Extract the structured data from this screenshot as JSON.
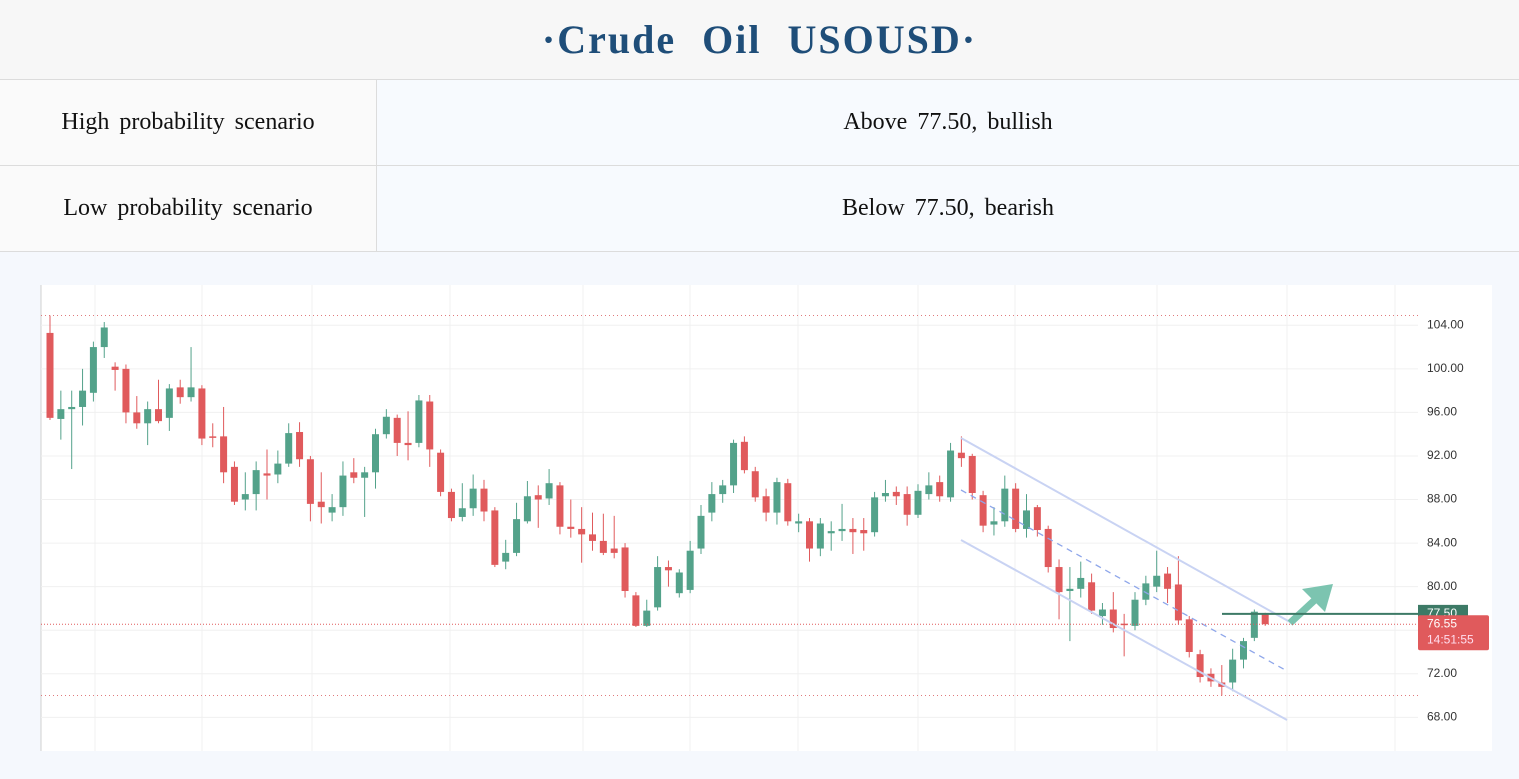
{
  "header": {
    "title": "·Crude Oil USOUSD·"
  },
  "table": {
    "rows": [
      [
        "High probability scenario",
        "Above 77.50, bullish"
      ],
      [
        "Low probability scenario",
        "Below 77.50, bearish"
      ]
    ]
  },
  "chart_data": {
    "type": "candlestick",
    "up_color": "#53a28a",
    "down_color": "#e05a5c",
    "ylim": [
      65,
      107.7
    ],
    "yticks": [
      {
        "value": 68,
        "label": "68.00"
      },
      {
        "value": 72,
        "label": "72.00"
      },
      {
        "value": 76,
        "label": "76.00"
      },
      {
        "value": 80,
        "label": "80.00"
      },
      {
        "value": 84,
        "label": "84.00"
      },
      {
        "value": 88,
        "label": "88.00"
      },
      {
        "value": 92,
        "label": "92.00"
      },
      {
        "value": 96,
        "label": "96.00"
      },
      {
        "value": 100,
        "label": "100.00"
      },
      {
        "value": 104,
        "label": "104.00"
      }
    ],
    "grid": true,
    "h_lines": [
      104.9,
      70.0
    ],
    "price_tags": [
      {
        "value": 77.5,
        "label": "77.50",
        "color": "#3d7a66"
      },
      {
        "value": 76.55,
        "label": "76.55",
        "countdown": "14:51:55",
        "color": "#e05a5c"
      }
    ],
    "ohlc": [
      [
        103.3,
        104.9,
        95.3,
        95.5
      ],
      [
        95.4,
        98,
        93.5,
        96.3
      ],
      [
        96.3,
        98,
        90.8,
        96.5
      ],
      [
        96.5,
        100,
        94.8,
        98
      ],
      [
        97.8,
        102.5,
        97,
        102
      ],
      [
        102,
        104.3,
        101,
        103.8
      ],
      [
        100.2,
        100.6,
        98,
        99.9
      ],
      [
        100,
        100.4,
        95,
        96
      ],
      [
        96,
        97.5,
        94.5,
        95
      ],
      [
        95,
        97,
        93,
        96.3
      ],
      [
        96.3,
        99,
        95,
        95.2
      ],
      [
        95.5,
        98.6,
        94.3,
        98.2
      ],
      [
        98.3,
        99,
        96.8,
        97.4
      ],
      [
        97.4,
        102,
        97,
        98.3
      ],
      [
        98.2,
        98.5,
        93,
        93.6
      ],
      [
        93.8,
        95,
        92.8,
        93.7
      ],
      [
        93.8,
        96.5,
        89.5,
        90.5
      ],
      [
        91,
        91.5,
        87.5,
        87.8
      ],
      [
        88,
        90.5,
        87,
        88.5
      ],
      [
        88.5,
        91.5,
        87,
        90.7
      ],
      [
        90.4,
        92.6,
        88,
        90.2
      ],
      [
        90.3,
        92.5,
        89.5,
        91.3
      ],
      [
        91.3,
        95,
        91,
        94.1
      ],
      [
        94.2,
        95.1,
        91,
        91.7
      ],
      [
        91.7,
        92,
        86,
        87.6
      ],
      [
        87.8,
        90.5,
        85.8,
        87.3
      ],
      [
        86.8,
        88.5,
        86,
        87.3
      ],
      [
        87.3,
        91.5,
        86.5,
        90.2
      ],
      [
        90.5,
        91.8,
        89.5,
        90
      ],
      [
        90,
        91,
        86.4,
        90.5
      ],
      [
        90.5,
        94.5,
        89,
        94
      ],
      [
        94,
        96.3,
        93.6,
        95.6
      ],
      [
        95.5,
        95.8,
        92,
        93.2
      ],
      [
        93.2,
        96.1,
        91.6,
        93
      ],
      [
        93.2,
        97.6,
        92.8,
        97.1
      ],
      [
        97,
        97.6,
        91,
        92.6
      ],
      [
        92.3,
        92.6,
        88.3,
        88.7
      ],
      [
        88.7,
        89,
        86,
        86.3
      ],
      [
        86.4,
        89.5,
        86,
        87.2
      ],
      [
        87.2,
        90.3,
        86.5,
        89
      ],
      [
        89,
        89.8,
        86,
        86.9
      ],
      [
        87,
        87.3,
        81.8,
        82
      ],
      [
        82.3,
        84.3,
        81.6,
        83.1
      ],
      [
        83.1,
        87.7,
        82.8,
        86.2
      ],
      [
        86,
        89.7,
        85.8,
        88.3
      ],
      [
        88.4,
        89.3,
        85.4,
        88
      ],
      [
        88.1,
        90.8,
        87.5,
        89.5
      ],
      [
        89.3,
        89.6,
        84.8,
        85.5
      ],
      [
        85.5,
        88,
        84.5,
        85.3
      ],
      [
        85.3,
        87.3,
        82.2,
        84.8
      ],
      [
        84.8,
        86.8,
        83.3,
        84.2
      ],
      [
        84.2,
        86.7,
        82.9,
        83.1
      ],
      [
        83.5,
        86.5,
        82.6,
        83.1
      ],
      [
        83.6,
        84,
        79,
        79.6
      ],
      [
        79.2,
        79.5,
        76.3,
        76.4
      ],
      [
        76.4,
        78.8,
        76.3,
        77.8
      ],
      [
        78.1,
        82.8,
        77.8,
        81.8
      ],
      [
        81.8,
        82.4,
        80,
        81.5
      ],
      [
        79.4,
        81.6,
        79,
        81.3
      ],
      [
        79.7,
        84.2,
        79.4,
        83.3
      ],
      [
        83.5,
        87.5,
        83,
        86.5
      ],
      [
        86.8,
        89.6,
        86,
        88.5
      ],
      [
        88.5,
        89.8,
        87.7,
        89.3
      ],
      [
        89.3,
        93.5,
        88.6,
        93.2
      ],
      [
        93.3,
        93.8,
        90.4,
        90.7
      ],
      [
        90.6,
        91,
        87.8,
        88.2
      ],
      [
        88.3,
        89,
        86,
        86.8
      ],
      [
        86.8,
        90,
        85.7,
        89.6
      ],
      [
        89.5,
        89.9,
        85.6,
        86
      ],
      [
        85.8,
        86.7,
        85,
        86
      ],
      [
        86,
        86.3,
        82.3,
        83.5
      ],
      [
        83.5,
        86.3,
        82.8,
        85.8
      ],
      [
        84.9,
        86,
        83.3,
        85.1
      ],
      [
        85.1,
        87.6,
        84.2,
        85.3
      ],
      [
        85.3,
        86.3,
        83,
        85
      ],
      [
        85.2,
        86.3,
        83.3,
        84.9
      ],
      [
        85,
        88.7,
        84.6,
        88.2
      ],
      [
        88.3,
        89.8,
        87.8,
        88.6
      ],
      [
        88.7,
        89.2,
        87.5,
        88.3
      ],
      [
        88.5,
        89.2,
        85.6,
        86.6
      ],
      [
        86.6,
        89.4,
        86.3,
        88.8
      ],
      [
        88.5,
        90.5,
        88,
        89.3
      ],
      [
        89.6,
        90.2,
        87.8,
        88.3
      ],
      [
        88.2,
        93.2,
        87.8,
        92.5
      ],
      [
        92.3,
        93.8,
        91,
        91.8
      ],
      [
        92,
        92.2,
        88,
        88.6
      ],
      [
        88.4,
        88.8,
        85,
        85.6
      ],
      [
        85.7,
        87.3,
        84.7,
        86
      ],
      [
        86,
        90.2,
        85.5,
        89
      ],
      [
        89,
        89.5,
        85,
        85.3
      ],
      [
        85.3,
        88.5,
        84.5,
        87
      ],
      [
        87.3,
        87.5,
        84.6,
        85.2
      ],
      [
        85.3,
        85.6,
        81.3,
        81.8
      ],
      [
        81.8,
        82.5,
        77,
        79.5
      ],
      [
        79.6,
        81.8,
        75,
        79.8
      ],
      [
        79.8,
        82.3,
        79,
        80.8
      ],
      [
        80.4,
        81.2,
        77.5,
        77.8
      ],
      [
        77.3,
        78.5,
        76.5,
        77.9
      ],
      [
        77.9,
        79.5,
        75.8,
        76.2
      ],
      [
        76.6,
        77.5,
        73.6,
        76.5
      ],
      [
        76.4,
        79.5,
        76,
        78.8
      ],
      [
        78.8,
        81,
        78.3,
        80.3
      ],
      [
        80,
        83.3,
        79.5,
        81
      ],
      [
        81.2,
        81.8,
        78.5,
        79.8
      ],
      [
        80.2,
        82.8,
        76.5,
        76.9
      ],
      [
        77,
        77.3,
        73.5,
        74
      ],
      [
        73.8,
        74.2,
        71.2,
        71.7
      ],
      [
        72,
        72.5,
        70.8,
        71.3
      ],
      [
        71.2,
        72.8,
        70,
        70.8
      ],
      [
        71.2,
        74.3,
        70.4,
        73.3
      ],
      [
        73.3,
        75.3,
        72.5,
        75
      ],
      [
        75.3,
        77.9,
        75,
        77.7
      ],
      [
        77.5,
        77.6,
        76.4,
        76.55
      ]
    ]
  }
}
